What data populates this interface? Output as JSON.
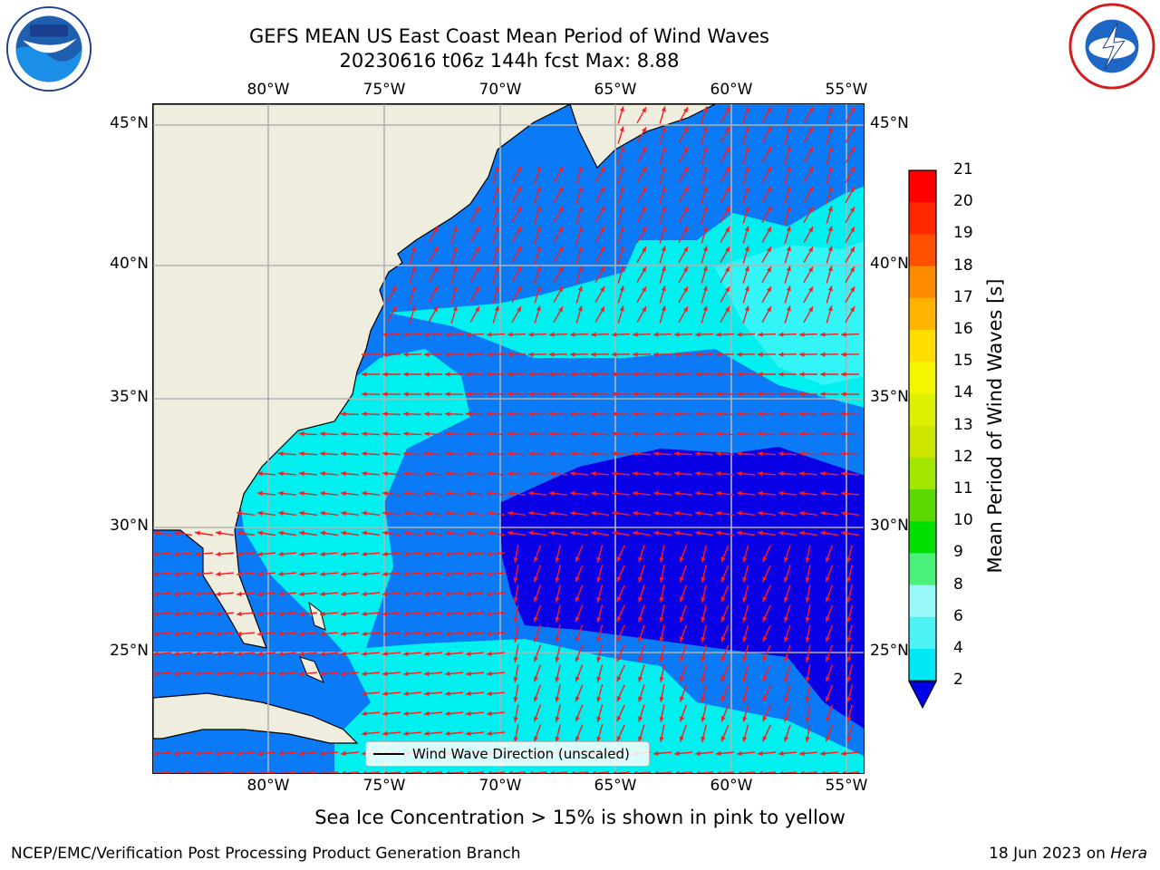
{
  "header": {
    "title_line1": "GEFS MEAN US East Coast Mean Period of Wind Waves",
    "title_line2": "20230616 t06z 144h fcst   Max: 8.88"
  },
  "map": {
    "lon_labels": [
      "80°W",
      "75°W",
      "70°W",
      "65°W",
      "60°W",
      "55°W"
    ],
    "lat_labels": [
      "45°N",
      "40°N",
      "35°N",
      "30°N",
      "25°N"
    ],
    "legend_label": "Wind Wave Direction (unscaled)",
    "land_color": "#efedde",
    "arrow_color": "#ff1a1a",
    "grid_color": "#b3b3b3"
  },
  "colorbar": {
    "label": "Mean Period of Wind Waves [s]",
    "ticks": [
      "2",
      "4",
      "6",
      "8",
      "9",
      "10",
      "11",
      "12",
      "13",
      "14",
      "15",
      "16",
      "17",
      "18",
      "19",
      "20",
      "21"
    ],
    "colors": [
      "#0a73f0",
      "#00e8f5",
      "#4df4f6",
      "#99f8f8",
      "#4af07a",
      "#00e000",
      "#5cd900",
      "#a3e600",
      "#cce600",
      "#ddf000",
      "#f5f500",
      "#ffde00",
      "#ffb400",
      "#ff8c00",
      "#ff5000",
      "#ff2800",
      "#ff0000"
    ],
    "under_color": "#0000e6"
  },
  "note": "Sea Ice Concentration > 15% is shown in pink to yellow",
  "footer": {
    "left": "NCEP/EMC/Verification Post Processing Product Generation Branch",
    "right_prefix": "18 Jun 2023 on ",
    "right_host": "Hera"
  }
}
